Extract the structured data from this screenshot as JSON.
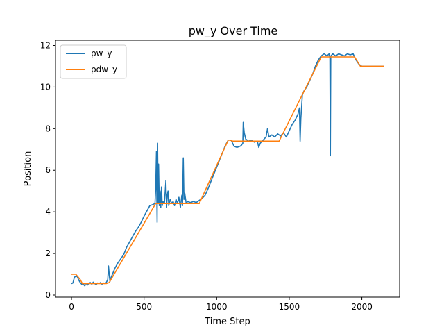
{
  "chart_data": {
    "type": "line",
    "title": "pw_y Over Time",
    "xlabel": "Time Step",
    "ylabel": "Position",
    "xlim": [
      -110,
      2260
    ],
    "ylim": [
      -0.1,
      12.25
    ],
    "xticks": [
      0,
      500,
      1000,
      1500,
      2000
    ],
    "yticks": [
      0,
      2,
      4,
      6,
      8,
      10,
      12
    ],
    "grid": false,
    "legend_position": "top-left",
    "series": [
      {
        "name": "pw_y",
        "color": "#1f77b4",
        "points": [
          [
            0,
            0.55
          ],
          [
            10,
            0.58
          ],
          [
            20,
            0.85
          ],
          [
            30,
            0.92
          ],
          [
            40,
            0.88
          ],
          [
            50,
            0.72
          ],
          [
            60,
            0.6
          ],
          [
            70,
            0.52
          ],
          [
            80,
            0.55
          ],
          [
            90,
            0.45
          ],
          [
            100,
            0.5
          ],
          [
            110,
            0.48
          ],
          [
            120,
            0.56
          ],
          [
            130,
            0.6
          ],
          [
            140,
            0.52
          ],
          [
            150,
            0.62
          ],
          [
            160,
            0.55
          ],
          [
            170,
            0.5
          ],
          [
            180,
            0.58
          ],
          [
            190,
            0.55
          ],
          [
            200,
            0.6
          ],
          [
            210,
            0.52
          ],
          [
            220,
            0.58
          ],
          [
            230,
            0.55
          ],
          [
            240,
            0.6
          ],
          [
            250,
            0.75
          ],
          [
            255,
            1.4
          ],
          [
            260,
            1.0
          ],
          [
            265,
            0.65
          ],
          [
            270,
            0.8
          ],
          [
            285,
            1.05
          ],
          [
            300,
            1.3
          ],
          [
            320,
            1.55
          ],
          [
            340,
            1.75
          ],
          [
            360,
            1.95
          ],
          [
            380,
            2.3
          ],
          [
            400,
            2.55
          ],
          [
            420,
            2.8
          ],
          [
            440,
            3.05
          ],
          [
            460,
            3.25
          ],
          [
            480,
            3.5
          ],
          [
            500,
            3.8
          ],
          [
            520,
            4.05
          ],
          [
            540,
            4.3
          ],
          [
            560,
            4.35
          ],
          [
            575,
            4.4
          ],
          [
            580,
            5.1
          ],
          [
            585,
            6.9
          ],
          [
            588,
            4.5
          ],
          [
            590,
            3.5
          ],
          [
            593,
            7.3
          ],
          [
            597,
            4.4
          ],
          [
            600,
            6.3
          ],
          [
            605,
            4.3
          ],
          [
            610,
            5.0
          ],
          [
            615,
            4.2
          ],
          [
            620,
            5.2
          ],
          [
            625,
            4.3
          ],
          [
            630,
            4.5
          ],
          [
            640,
            4.4
          ],
          [
            650,
            5.5
          ],
          [
            655,
            4.2
          ],
          [
            660,
            4.8
          ],
          [
            665,
            5.0
          ],
          [
            670,
            4.3
          ],
          [
            680,
            4.6
          ],
          [
            690,
            4.4
          ],
          [
            700,
            4.5
          ],
          [
            710,
            4.3
          ],
          [
            720,
            4.6
          ],
          [
            730,
            4.4
          ],
          [
            740,
            4.7
          ],
          [
            750,
            4.2
          ],
          [
            760,
            4.8
          ],
          [
            765,
            4.3
          ],
          [
            770,
            6.6
          ],
          [
            775,
            4.6
          ],
          [
            780,
            4.9
          ],
          [
            790,
            4.4
          ],
          [
            800,
            4.5
          ],
          [
            820,
            4.45
          ],
          [
            840,
            4.5
          ],
          [
            860,
            4.45
          ],
          [
            880,
            4.55
          ],
          [
            900,
            4.65
          ],
          [
            920,
            4.8
          ],
          [
            940,
            5.1
          ],
          [
            960,
            5.45
          ],
          [
            980,
            5.8
          ],
          [
            1000,
            6.15
          ],
          [
            1020,
            6.5
          ],
          [
            1040,
            6.85
          ],
          [
            1060,
            7.2
          ],
          [
            1080,
            7.45
          ],
          [
            1100,
            7.45
          ],
          [
            1110,
            7.3
          ],
          [
            1120,
            7.15
          ],
          [
            1140,
            7.1
          ],
          [
            1160,
            7.15
          ],
          [
            1170,
            7.2
          ],
          [
            1180,
            7.3
          ],
          [
            1183,
            8.3
          ],
          [
            1190,
            7.8
          ],
          [
            1200,
            7.5
          ],
          [
            1220,
            7.4
          ],
          [
            1240,
            7.45
          ],
          [
            1260,
            7.35
          ],
          [
            1280,
            7.4
          ],
          [
            1290,
            7.1
          ],
          [
            1300,
            7.3
          ],
          [
            1320,
            7.45
          ],
          [
            1340,
            7.6
          ],
          [
            1350,
            8.0
          ],
          [
            1360,
            7.6
          ],
          [
            1380,
            7.7
          ],
          [
            1400,
            7.6
          ],
          [
            1420,
            7.75
          ],
          [
            1440,
            7.65
          ],
          [
            1460,
            7.8
          ],
          [
            1480,
            7.6
          ],
          [
            1500,
            7.9
          ],
          [
            1520,
            8.2
          ],
          [
            1540,
            8.4
          ],
          [
            1560,
            8.7
          ],
          [
            1570,
            9.0
          ],
          [
            1575,
            7.4
          ],
          [
            1580,
            8.5
          ],
          [
            1590,
            9.6
          ],
          [
            1600,
            9.8
          ],
          [
            1620,
            10.0
          ],
          [
            1640,
            10.3
          ],
          [
            1660,
            10.6
          ],
          [
            1680,
            11.0
          ],
          [
            1700,
            11.3
          ],
          [
            1720,
            11.5
          ],
          [
            1740,
            11.6
          ],
          [
            1760,
            11.5
          ],
          [
            1775,
            11.6
          ],
          [
            1780,
            11.4
          ],
          [
            1783,
            6.7
          ],
          [
            1786,
            11.5
          ],
          [
            1800,
            11.6
          ],
          [
            1820,
            11.5
          ],
          [
            1840,
            11.6
          ],
          [
            1860,
            11.55
          ],
          [
            1880,
            11.5
          ],
          [
            1900,
            11.6
          ],
          [
            1920,
            11.55
          ],
          [
            1940,
            11.6
          ],
          [
            1960,
            11.3
          ],
          [
            1980,
            11.1
          ],
          [
            2000,
            11.0
          ],
          [
            2040,
            11.0
          ],
          [
            2080,
            11.0
          ],
          [
            2120,
            11.0
          ],
          [
            2150,
            11.0
          ]
        ]
      },
      {
        "name": "pdw_y",
        "color": "#ff7f0e",
        "points": [
          [
            0,
            1.0
          ],
          [
            30,
            1.0
          ],
          [
            60,
            0.75
          ],
          [
            75,
            0.55
          ],
          [
            240,
            0.55
          ],
          [
            260,
            0.6
          ],
          [
            580,
            4.4
          ],
          [
            880,
            4.4
          ],
          [
            1080,
            7.45
          ],
          [
            1090,
            7.45
          ],
          [
            1110,
            7.4
          ],
          [
            1430,
            7.4
          ],
          [
            1720,
            11.45
          ],
          [
            1950,
            11.45
          ],
          [
            1990,
            11.0
          ],
          [
            2150,
            11.0
          ]
        ]
      }
    ]
  }
}
